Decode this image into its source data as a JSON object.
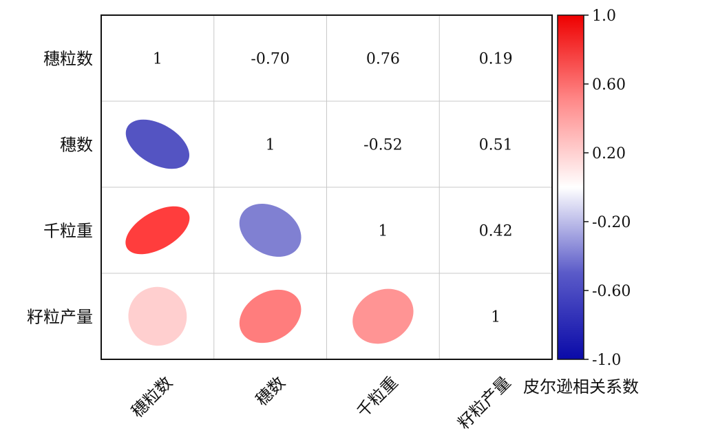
{
  "chart_data": {
    "type": "heatmap",
    "subtype": "correlation-matrix-ellipse",
    "variables": [
      "穗粒数",
      "穗数",
      "千粒重",
      "籽粒产量"
    ],
    "matrix": [
      [
        1,
        -0.7,
        0.76,
        0.19
      ],
      [
        -0.7,
        1,
        -0.52,
        0.51
      ],
      [
        0.76,
        -0.52,
        1,
        0.42
      ],
      [
        0.19,
        0.51,
        0.42,
        1
      ]
    ],
    "upper_labels": [
      [
        "1",
        "-0.70",
        "0.76",
        "0.19"
      ],
      [
        "",
        "1",
        "-0.52",
        "0.51"
      ],
      [
        "",
        "",
        "1",
        "0.42"
      ],
      [
        "",
        "",
        "",
        "1"
      ]
    ],
    "lower_display": "ellipse",
    "upper_display": "number",
    "colorbar": {
      "title": "皮尔逊相关系数",
      "range": [
        -1.0,
        1.0
      ],
      "ticks": [
        "1.0",
        "0.60",
        "0.20",
        "-0.20",
        "-0.60",
        "-1.0"
      ],
      "tick_values": [
        1.0,
        0.6,
        0.2,
        -0.2,
        -0.6,
        -1.0
      ],
      "colors": {
        "neg": "#0a0aa8",
        "mid": "#ffffff",
        "pos": "#ff0000"
      }
    },
    "grid": true
  }
}
